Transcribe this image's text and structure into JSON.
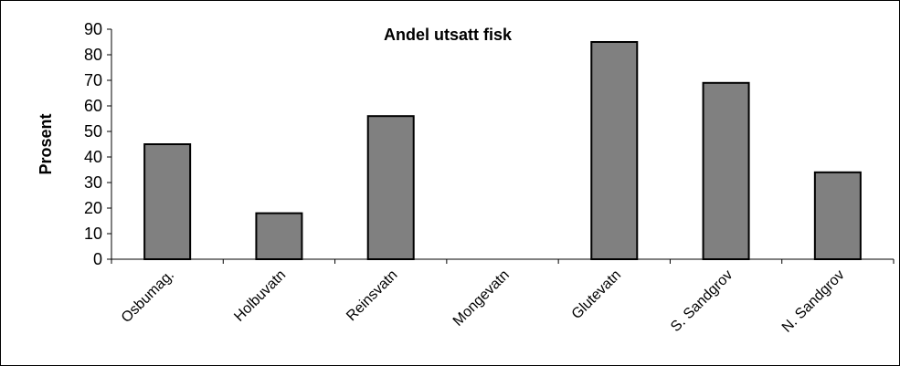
{
  "chart_data": {
    "type": "bar",
    "title": "Andel utsatt fisk",
    "y_label": "Prosent",
    "categories": [
      "Osbumag.",
      "Holbuvatn",
      "Reinsvatn",
      "Mongevatn",
      "Glutevatn",
      "S. Sandgrov",
      "N. Sandgrov"
    ],
    "values": [
      45,
      18,
      56,
      0,
      85,
      69,
      34
    ],
    "color": "#808080",
    "ylim": [
      0,
      90
    ],
    "yticks": [
      0,
      10,
      20,
      30,
      40,
      50,
      60,
      70,
      80,
      90
    ],
    "grid": false
  }
}
